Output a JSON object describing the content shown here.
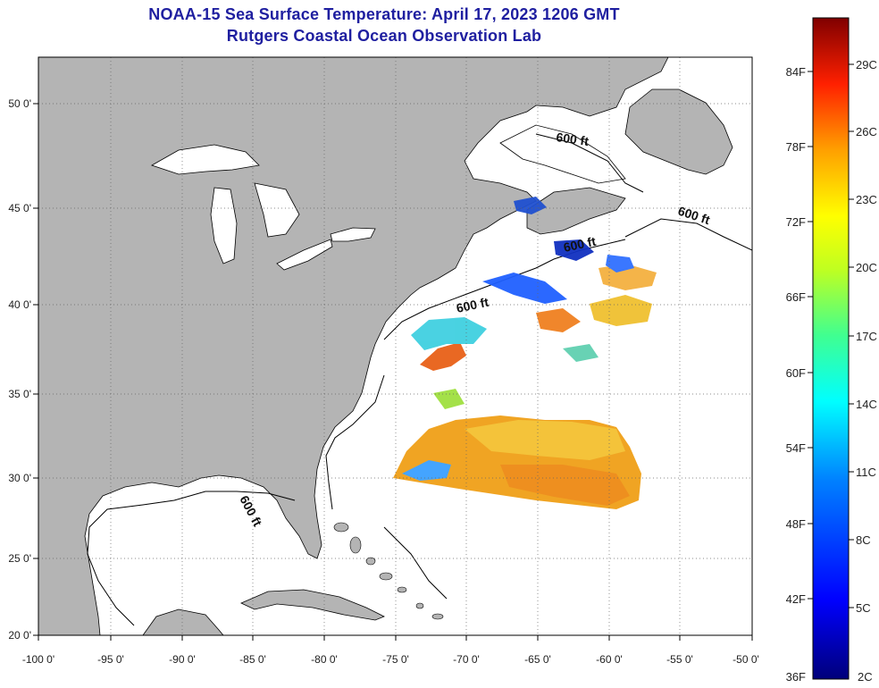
{
  "title": "NOAA-15 Sea Surface Temperature:  April 17, 2023 1206 GMT",
  "subtitle": "Rutgers Coastal Ocean Observation Lab",
  "map": {
    "lat_ticks": [
      "50 0'",
      "45 0'",
      "40 0'",
      "35 0'",
      "30 0'",
      "25 0'",
      "20 0'"
    ],
    "lon_ticks": [
      "-100 0'",
      "-95 0'",
      "-90 0'",
      "-85 0'",
      "-80 0'",
      "-75 0'",
      "-70 0'",
      "-65 0'",
      "-60 0'",
      "-55 0'",
      "-50 0'"
    ],
    "contour_label": "600 ft",
    "land_color": "#b4b4b4",
    "grid": true
  },
  "colorbar": {
    "f_labels": [
      "84F",
      "78F",
      "72F",
      "66F",
      "60F",
      "54F",
      "48F",
      "42F",
      "36F"
    ],
    "c_labels": [
      "29C",
      "26C",
      "23C",
      "20C",
      "17C",
      "14C",
      "11C",
      "8C",
      "5C",
      "2C"
    ]
  }
}
